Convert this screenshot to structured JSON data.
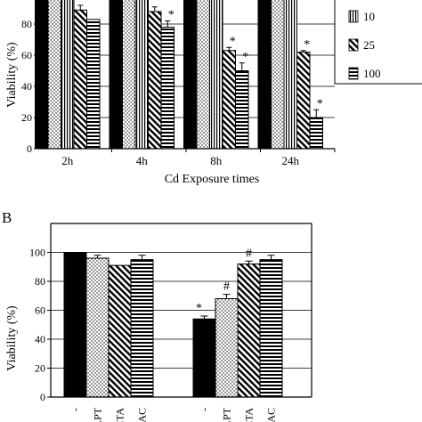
{
  "chart_data": [
    {
      "type": "bar",
      "ylabel": "Viability (%)",
      "xlabel": "Cd  Exposure times",
      "categories": [
        "2h",
        "4h",
        "8h",
        "24h"
      ],
      "ylim": [
        0,
        100
      ],
      "yticks": [
        0,
        20,
        40,
        60,
        80
      ],
      "grid": true,
      "legend_position": "right",
      "series": [
        {
          "name": "",
          "values": [
            100,
            100,
            100,
            100
          ],
          "errors": [
            0,
            0,
            0,
            0
          ],
          "pattern": "solid"
        },
        {
          "name": "",
          "values": [
            100,
            100,
            100,
            100
          ],
          "errors": [
            0,
            0,
            0,
            0
          ],
          "pattern": "dots"
        },
        {
          "name": "10",
          "values": [
            100,
            100,
            100,
            100
          ],
          "errors": [
            0,
            0,
            0,
            0
          ],
          "pattern": "vlines"
        },
        {
          "name": "25",
          "values": [
            89,
            88,
            63,
            62
          ],
          "errors": [
            3,
            3,
            2,
            1
          ],
          "pattern": "diag"
        },
        {
          "name": "100",
          "values": [
            83,
            78,
            50,
            20
          ],
          "errors": [
            0,
            4,
            5,
            5
          ],
          "pattern": "hlines"
        }
      ],
      "annotations": [
        {
          "category": "4h",
          "series": 4,
          "label": "*"
        },
        {
          "category": "8h",
          "series": 3,
          "label": "*"
        },
        {
          "category": "8h",
          "series": 4,
          "label": "*"
        },
        {
          "category": "24h",
          "series": 3,
          "label": "*"
        },
        {
          "category": "24h",
          "series": 4,
          "label": "*"
        }
      ]
    },
    {
      "type": "bar",
      "panel_label": "B",
      "ylabel": "Viability (%)",
      "ylim": [
        0,
        120
      ],
      "yticks": [
        0,
        20,
        40,
        60,
        80,
        100
      ],
      "grid": true,
      "groups": [
        {
          "categories": [
            "-",
            "LPT",
            "ETA",
            "NAC"
          ],
          "values": [
            100,
            96,
            91,
            95
          ],
          "errors": [
            0,
            2,
            0,
            3
          ],
          "patterns": [
            "solid",
            "dots",
            "diag",
            "hlines"
          ],
          "marks": [
            "",
            "",
            "",
            ""
          ]
        },
        {
          "categories": [
            "-",
            "LPT",
            "ETA",
            "NAC"
          ],
          "values": [
            54,
            68,
            92,
            95
          ],
          "errors": [
            2,
            3,
            2,
            3
          ],
          "patterns": [
            "solid",
            "dots",
            "diag",
            "hlines"
          ],
          "marks": [
            "*",
            "#",
            "#",
            ""
          ]
        }
      ]
    }
  ]
}
